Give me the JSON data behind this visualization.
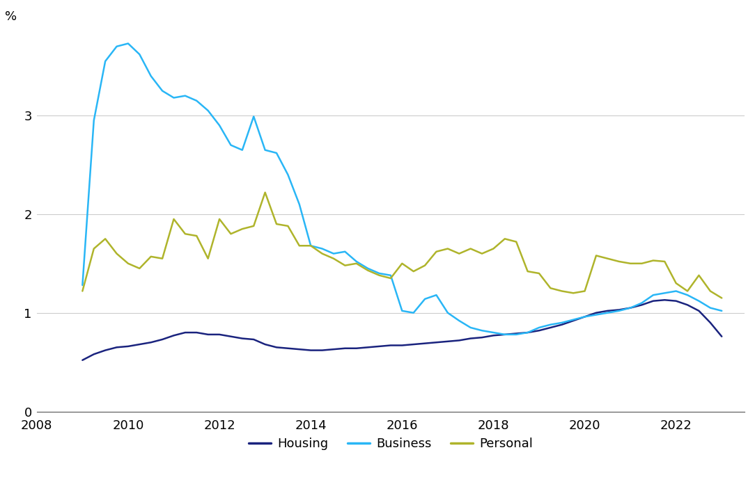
{
  "title": "",
  "ylabel": "%",
  "ylim": [
    0,
    3.9
  ],
  "yticks": [
    0,
    1,
    2,
    3
  ],
  "xlim": [
    2008.0,
    2023.5
  ],
  "xticks": [
    2008,
    2010,
    2012,
    2014,
    2016,
    2018,
    2020,
    2022
  ],
  "background_color": "#ffffff",
  "grid_color": "#cccccc",
  "housing_color": "#1a237e",
  "business_color": "#29b6f6",
  "personal_color": "#afb42b",
  "housing": {
    "x": [
      2009.0,
      2009.25,
      2009.5,
      2009.75,
      2010.0,
      2010.25,
      2010.5,
      2010.75,
      2011.0,
      2011.25,
      2011.5,
      2011.75,
      2012.0,
      2012.25,
      2012.5,
      2012.75,
      2013.0,
      2013.25,
      2013.5,
      2013.75,
      2014.0,
      2014.25,
      2014.5,
      2014.75,
      2015.0,
      2015.25,
      2015.5,
      2015.75,
      2016.0,
      2016.25,
      2016.5,
      2016.75,
      2017.0,
      2017.25,
      2017.5,
      2017.75,
      2018.0,
      2018.25,
      2018.5,
      2018.75,
      2019.0,
      2019.25,
      2019.5,
      2019.75,
      2020.0,
      2020.25,
      2020.5,
      2020.75,
      2021.0,
      2021.25,
      2021.5,
      2021.75,
      2022.0,
      2022.25,
      2022.5,
      2022.75,
      2023.0
    ],
    "y": [
      0.52,
      0.58,
      0.62,
      0.65,
      0.66,
      0.68,
      0.7,
      0.73,
      0.77,
      0.8,
      0.8,
      0.78,
      0.78,
      0.76,
      0.74,
      0.73,
      0.68,
      0.65,
      0.64,
      0.63,
      0.62,
      0.62,
      0.63,
      0.64,
      0.64,
      0.65,
      0.66,
      0.67,
      0.67,
      0.68,
      0.69,
      0.7,
      0.71,
      0.72,
      0.74,
      0.75,
      0.77,
      0.78,
      0.79,
      0.8,
      0.82,
      0.85,
      0.88,
      0.92,
      0.96,
      1.0,
      1.02,
      1.03,
      1.05,
      1.08,
      1.12,
      1.13,
      1.12,
      1.08,
      1.02,
      0.9,
      0.76
    ]
  },
  "business": {
    "x": [
      2009.0,
      2009.25,
      2009.5,
      2009.75,
      2010.0,
      2010.25,
      2010.5,
      2010.75,
      2011.0,
      2011.25,
      2011.5,
      2011.75,
      2012.0,
      2012.25,
      2012.5,
      2012.75,
      2013.0,
      2013.25,
      2013.5,
      2013.75,
      2014.0,
      2014.25,
      2014.5,
      2014.75,
      2015.0,
      2015.25,
      2015.5,
      2015.75,
      2016.0,
      2016.25,
      2016.5,
      2016.75,
      2017.0,
      2017.25,
      2017.5,
      2017.75,
      2018.0,
      2018.25,
      2018.5,
      2018.75,
      2019.0,
      2019.25,
      2019.5,
      2019.75,
      2020.0,
      2020.25,
      2020.5,
      2020.75,
      2021.0,
      2021.25,
      2021.5,
      2021.75,
      2022.0,
      2022.25,
      2022.5,
      2022.75,
      2023.0
    ],
    "y": [
      1.28,
      2.95,
      3.55,
      3.7,
      3.73,
      3.62,
      3.4,
      3.25,
      3.18,
      3.2,
      3.15,
      3.05,
      2.9,
      2.7,
      2.65,
      2.99,
      2.65,
      2.62,
      2.4,
      2.1,
      1.68,
      1.65,
      1.6,
      1.62,
      1.52,
      1.45,
      1.4,
      1.38,
      1.02,
      1.0,
      1.14,
      1.18,
      1.0,
      0.92,
      0.85,
      0.82,
      0.8,
      0.78,
      0.78,
      0.8,
      0.85,
      0.88,
      0.9,
      0.93,
      0.96,
      0.98,
      1.0,
      1.02,
      1.05,
      1.1,
      1.18,
      1.2,
      1.22,
      1.18,
      1.12,
      1.05,
      1.02
    ]
  },
  "personal": {
    "x": [
      2009.0,
      2009.25,
      2009.5,
      2009.75,
      2010.0,
      2010.25,
      2010.5,
      2010.75,
      2011.0,
      2011.25,
      2011.5,
      2011.75,
      2012.0,
      2012.25,
      2012.5,
      2012.75,
      2013.0,
      2013.25,
      2013.5,
      2013.75,
      2014.0,
      2014.25,
      2014.5,
      2014.75,
      2015.0,
      2015.25,
      2015.5,
      2015.75,
      2016.0,
      2016.25,
      2016.5,
      2016.75,
      2017.0,
      2017.25,
      2017.5,
      2017.75,
      2018.0,
      2018.25,
      2018.5,
      2018.75,
      2019.0,
      2019.25,
      2019.5,
      2019.75,
      2020.0,
      2020.25,
      2020.5,
      2020.75,
      2021.0,
      2021.25,
      2021.5,
      2021.75,
      2022.0,
      2022.25,
      2022.5,
      2022.75,
      2023.0
    ],
    "y": [
      1.22,
      1.65,
      1.75,
      1.6,
      1.5,
      1.45,
      1.57,
      1.55,
      1.95,
      1.8,
      1.78,
      1.55,
      1.95,
      1.8,
      1.85,
      1.88,
      2.22,
      1.9,
      1.88,
      1.68,
      1.68,
      1.6,
      1.55,
      1.48,
      1.5,
      1.43,
      1.38,
      1.35,
      1.5,
      1.42,
      1.48,
      1.62,
      1.65,
      1.6,
      1.65,
      1.6,
      1.65,
      1.75,
      1.72,
      1.42,
      1.4,
      1.25,
      1.22,
      1.2,
      1.22,
      1.58,
      1.55,
      1.52,
      1.5,
      1.5,
      1.53,
      1.52,
      1.3,
      1.22,
      1.38,
      1.22,
      1.15
    ]
  },
  "legend_labels": [
    "Housing",
    "Business",
    "Personal"
  ],
  "line_width": 1.8
}
